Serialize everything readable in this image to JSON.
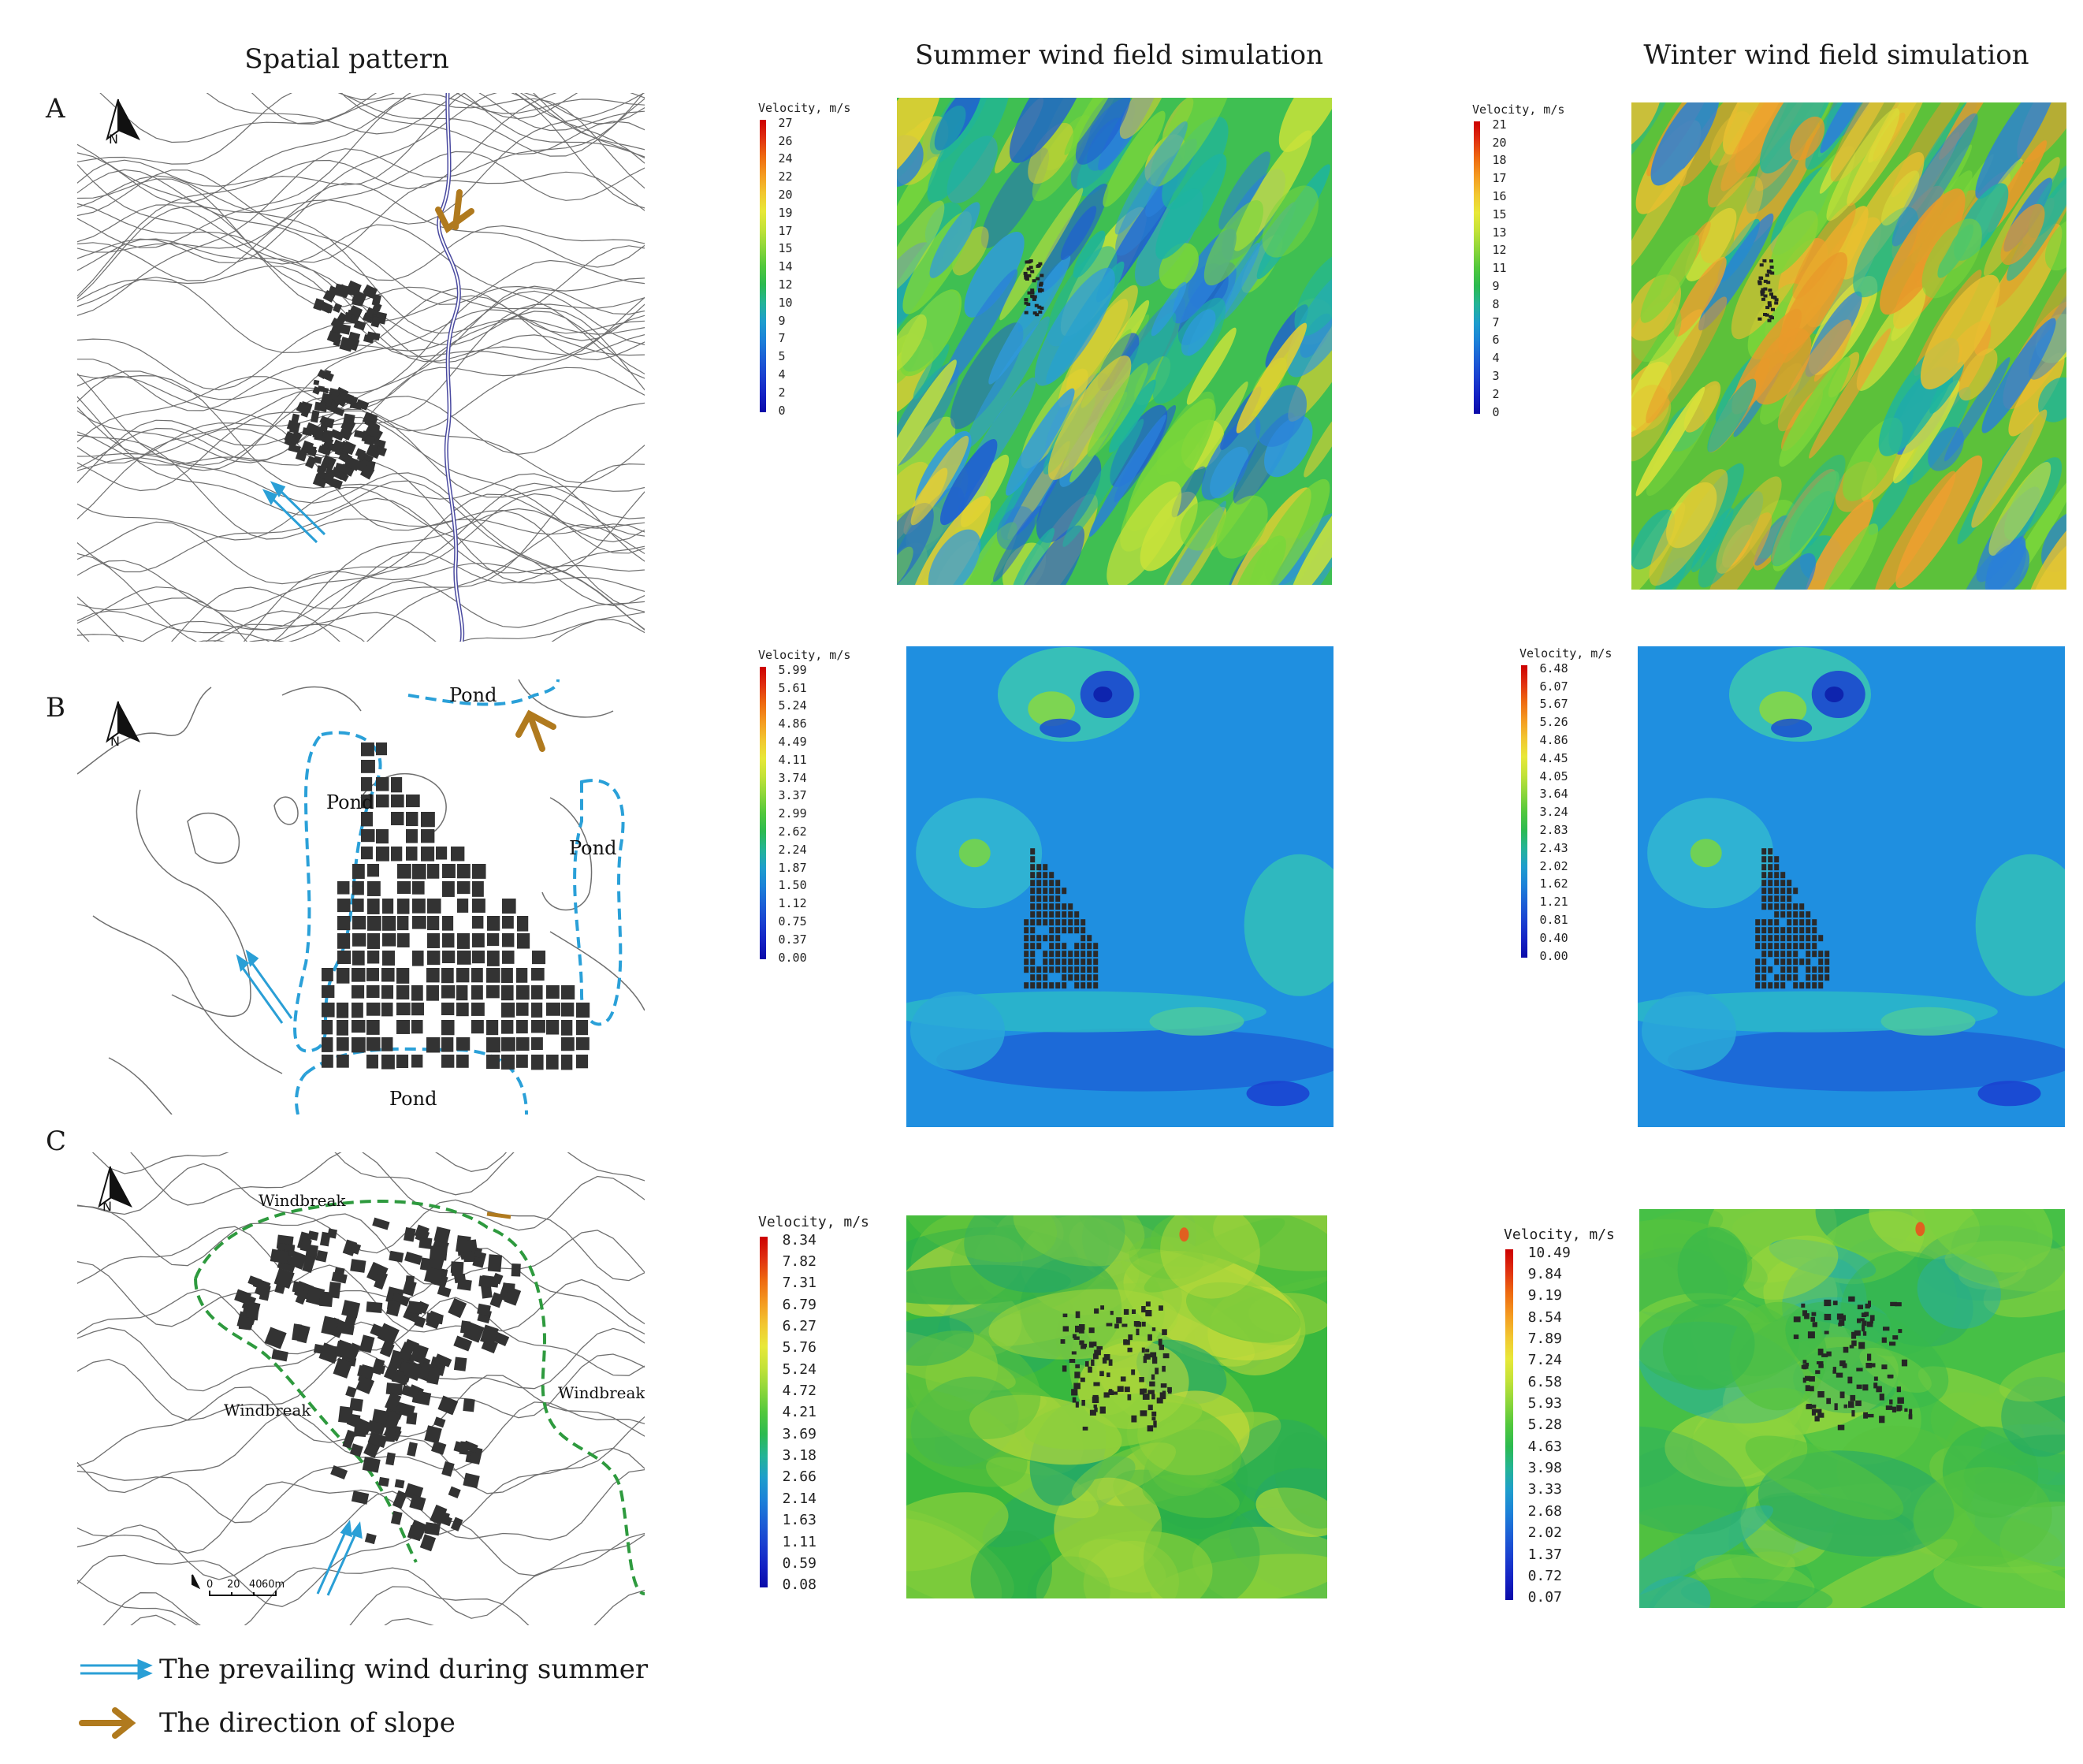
{
  "columns": {
    "spatial": "Spatial pattern",
    "summer": "Summer wind field simulation",
    "winter": "Winter wind field simulation"
  },
  "rows": [
    "A",
    "B",
    "C"
  ],
  "map_labels": {
    "north": "N",
    "pond": "Pond",
    "windbreak": "Windbreak",
    "scale": [
      "0",
      "20",
      "40",
      "60m"
    ]
  },
  "legends": [
    {
      "title": "Velocity, m/s",
      "ticks": [
        "27",
        "26",
        "24",
        "22",
        "20",
        "19",
        "17",
        "15",
        "14",
        "12",
        "10",
        "9",
        "7",
        "5",
        "4",
        "2",
        "0"
      ]
    },
    {
      "title": "Velocity, m/s",
      "ticks": [
        "21",
        "20",
        "18",
        "17",
        "16",
        "15",
        "13",
        "12",
        "11",
        "9",
        "8",
        "7",
        "6",
        "4",
        "3",
        "2",
        "0"
      ]
    },
    {
      "title": "Velocity, m/s",
      "ticks": [
        "5.99",
        "5.61",
        "5.24",
        "4.86",
        "4.49",
        "4.11",
        "3.74",
        "3.37",
        "2.99",
        "2.62",
        "2.24",
        "1.87",
        "1.50",
        "1.12",
        "0.75",
        "0.37",
        "0.00"
      ]
    },
    {
      "title": "Velocity, m/s",
      "ticks": [
        "6.48",
        "6.07",
        "5.67",
        "5.26",
        "4.86",
        "4.45",
        "4.05",
        "3.64",
        "3.24",
        "2.83",
        "2.43",
        "2.02",
        "1.62",
        "1.21",
        "0.81",
        "0.40",
        "0.00"
      ]
    },
    {
      "title": "Velocity, m/s",
      "ticks": [
        "8.34",
        "7.82",
        "7.31",
        "6.79",
        "6.27",
        "5.76",
        "5.24",
        "4.72",
        "4.21",
        "3.69",
        "3.18",
        "2.66",
        "2.14",
        "1.63",
        "1.11",
        "0.59",
        "0.08"
      ]
    },
    {
      "title": "Velocity, m/s",
      "ticks": [
        "10.49",
        "9.84",
        "9.19",
        "8.54",
        "7.89",
        "7.24",
        "6.58",
        "5.93",
        "5.28",
        "4.63",
        "3.98",
        "3.33",
        "2.68",
        "2.02",
        "1.37",
        "0.72",
        "0.07"
      ]
    }
  ],
  "key": {
    "wind": "The prevailing wind during summer",
    "slope": "The direction of slope"
  },
  "colors": {
    "wind_arrow": "#2a9fd6",
    "slope_arrow": "#b07a1e",
    "pond_dash": "#2aa0d8",
    "windbreak_dash": "#2e9a3e",
    "building": "#333333",
    "river": "#4a4aa0"
  }
}
